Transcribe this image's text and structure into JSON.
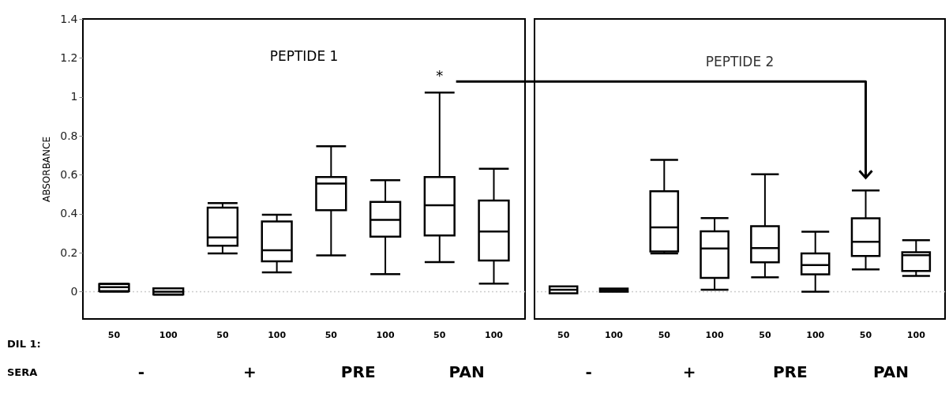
{
  "chart_data": [
    {
      "type": "box",
      "title": "PEPTIDE 1",
      "ylabel": "ABSORBANCE",
      "categories": [
        "50",
        "100",
        "50",
        "100",
        "50",
        "100",
        "50",
        "100"
      ],
      "boxes": [
        {
          "low": 0.0,
          "q1": 0.003,
          "median": 0.023,
          "q3": 0.039,
          "high": 0.04
        },
        {
          "low": -0.015,
          "q1": -0.014,
          "median": 0.0,
          "q3": 0.017,
          "high": 0.017
        },
        {
          "low": 0.196,
          "q1": 0.236,
          "median": 0.278,
          "q3": 0.431,
          "high": 0.455
        },
        {
          "low": 0.099,
          "q1": 0.156,
          "median": 0.213,
          "q3": 0.36,
          "high": 0.395
        },
        {
          "low": 0.186,
          "q1": 0.418,
          "median": 0.555,
          "q3": 0.588,
          "high": 0.747
        },
        {
          "low": 0.09,
          "q1": 0.282,
          "median": 0.369,
          "q3": 0.461,
          "high": 0.572
        },
        {
          "low": 0.152,
          "q1": 0.289,
          "median": 0.444,
          "q3": 0.588,
          "high": 1.022
        },
        {
          "low": 0.041,
          "q1": 0.16,
          "median": 0.309,
          "q3": 0.468,
          "high": 0.631
        }
      ],
      "ylim": [
        -0.14,
        1.4
      ],
      "yticks": [
        0,
        0.2,
        0.4,
        0.6,
        0.8,
        1,
        1.2,
        1.4
      ],
      "ref_lines": [
        {
          "axis": "y",
          "value": 0,
          "color": "#cccccc",
          "line_style": "dotted"
        }
      ],
      "annotations": [
        "DIL 1:",
        "SERA",
        "-",
        "+",
        "PRE",
        "PAN",
        "*"
      ]
    },
    {
      "type": "box",
      "title": "PEPTIDE 2",
      "categories": [
        "50",
        "100",
        "50",
        "100",
        "50",
        "100",
        "50",
        "100"
      ],
      "boxes": [
        {
          "low": -0.008,
          "q1": -0.008,
          "median": 0.01,
          "q3": 0.027,
          "high": 0.027
        },
        {
          "low": 0.0,
          "q1": 0.0,
          "median": 0.008,
          "q3": 0.016,
          "high": 0.016
        },
        {
          "low": 0.196,
          "q1": 0.206,
          "median": 0.33,
          "q3": 0.516,
          "high": 0.677
        },
        {
          "low": 0.01,
          "q1": 0.071,
          "median": 0.222,
          "q3": 0.31,
          "high": 0.378
        },
        {
          "low": 0.074,
          "q1": 0.151,
          "median": 0.224,
          "q3": 0.336,
          "high": 0.603
        },
        {
          "low": 0.0,
          "q1": 0.089,
          "median": 0.137,
          "q3": 0.196,
          "high": 0.308
        },
        {
          "low": 0.114,
          "q1": 0.183,
          "median": 0.256,
          "q3": 0.377,
          "high": 0.52
        },
        {
          "low": 0.081,
          "q1": 0.106,
          "median": 0.187,
          "q3": 0.202,
          "high": 0.264
        }
      ],
      "ylim": [
        -0.14,
        1.4
      ],
      "yticks": [
        0,
        0.2,
        0.4,
        0.6,
        0.8,
        1,
        1.2,
        1.4
      ],
      "tick_labels": "x",
      "ref_lines": [
        {
          "axis": "y",
          "value": 0,
          "color": "#cccccc",
          "line_style": "dotted"
        }
      ],
      "annotations": [
        "-",
        "+",
        "PRE",
        "PAN"
      ]
    }
  ]
}
